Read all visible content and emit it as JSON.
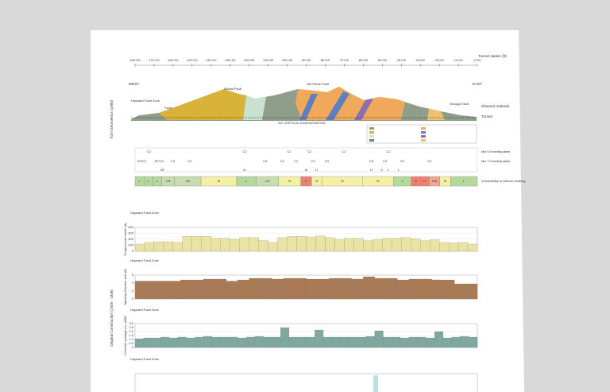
{
  "header": {
    "stations": [
      "180+00",
      "170+00",
      "160+00",
      "150+00",
      "140+00",
      "130+00",
      "120+00",
      "110+00",
      "100+00",
      "90+00",
      "80+00",
      "70+00",
      "60+00",
      "50+00",
      "40+00",
      "30+00",
      "20+00",
      "10+00",
      "0+00"
    ],
    "station_label": "Tunnel station (ft)"
  },
  "section": {
    "side_label": "from Geometrics (1980)",
    "west": "WEST",
    "east": "EAST",
    "faults": [
      "Hayward Fault Zone",
      "Fault",
      "Midcal Fault",
      "Old Route Fault",
      "Moraga Fault"
    ],
    "notes": [
      "Sheared material",
      "Tunnel",
      "NO VERTICAL EXAGGERATION"
    ]
  },
  "seismic": {
    "rows": [
      {
        "label": "Mw 6.9 earthquakes",
        "marks": [
          "C2",
          "C2",
          "C2",
          "C2",
          "C2",
          "C2"
        ]
      },
      {
        "label": "Mw 7.0 earthquakes",
        "marks": [
          "FO/C1",
          "SF/C3",
          "C3",
          "C3",
          "C3",
          "C2",
          "C1",
          "C3",
          "C3",
          "C3",
          "C3",
          "C3",
          "C3"
        ]
      },
      {
        "label": "",
        "marks": [
          "OF",
          "M",
          "M",
          "H",
          "H",
          "H",
          "L",
          "L"
        ]
      }
    ],
    "vulnerability": {
      "label": "Vulnerability to seismic shaking",
      "cells": [
        "L",
        "L",
        "L",
        "LM",
        "LM",
        "M",
        "L",
        "LM",
        "M",
        "H",
        "M",
        "M",
        "M",
        "L",
        "H",
        "H",
        "HM",
        "M",
        "L"
      ],
      "colors": [
        "#b5d99c",
        "#b5d99c",
        "#b5d99c",
        "#c8dcb0",
        "#c8dcb0",
        "#f5f0a8",
        "#b5d99c",
        "#c8dcb0",
        "#f5f0a8",
        "#f08070",
        "#f5f0a8",
        "#f5f0a8",
        "#f5f0a8",
        "#b5d99c",
        "#f08070",
        "#f08070",
        "#f0a890",
        "#f5f0a8",
        "#b5d99c"
      ]
    }
  },
  "construction": {
    "side_label": "Original Construction (1929 - 1939)",
    "fault_label": "Hayward Fault Zone"
  },
  "chart_data": [
    {
      "type": "bar",
      "y_label": "Progress per month (ft)",
      "color": "#e9e3a6",
      "values": [
        120,
        150,
        160,
        160,
        150,
        250,
        250,
        250,
        220,
        220,
        200,
        230,
        230,
        180,
        150,
        230,
        250,
        250,
        240,
        260,
        230,
        200,
        220,
        220,
        180,
        200,
        220,
        220,
        230,
        210,
        180,
        200,
        150,
        140,
        150,
        120
      ],
      "ylim": [
        0,
        400
      ],
      "yticks": [
        0,
        100,
        200,
        300,
        400
      ]
    },
    {
      "type": "bar",
      "y_label": "Spacing of timber sets (ft)",
      "color": "#a87a55",
      "values": [
        4.5,
        4.5,
        4.5,
        4.5,
        4.8,
        4.8,
        5,
        5,
        4.5,
        4.8,
        5.2,
        5.2,
        5,
        5.2,
        5.2,
        5,
        5,
        5.2,
        5.2,
        5,
        5.6,
        5.2,
        5.2,
        4.8,
        5,
        5,
        4.8,
        4.8,
        3.8,
        3.8
      ],
      "ylim": [
        0,
        6
      ],
      "yticks": [
        0,
        2,
        4,
        6
      ]
    },
    {
      "type": "bar",
      "y_label": "Concrete yardage (cu. yd/ft)",
      "color": "#7fa8a0",
      "values": [
        1.1,
        1.2,
        1.2,
        1.3,
        1.2,
        1.3,
        1.2,
        1.3,
        1.4,
        1.3,
        1.3,
        1.3,
        1.2,
        1.3,
        1.4,
        1.3,
        1.3,
        2.5,
        1.3,
        1.3,
        1.3,
        2.2,
        1.3,
        1.3,
        1.3,
        1.3,
        1.3,
        1.4,
        2.1,
        1.3,
        1.3,
        1.2,
        1.3,
        1.3,
        1.2,
        2.0,
        1.2,
        1.3,
        1.4,
        1.3
      ],
      "ylim": [
        0,
        3
      ],
      "yticks": [
        {
          "value": 0,
          "label": "0"
        },
        {
          "value": 0.5,
          "label": "0.5"
        },
        {
          "value": 1,
          "label": "1.0"
        },
        {
          "value": 1.5,
          "label": "1.5"
        },
        {
          "value": 2,
          "label": "2.0"
        },
        {
          "value": 2.5,
          "label": "2.5"
        },
        {
          "value": 3,
          "label": "3.0"
        }
      ]
    }
  ]
}
